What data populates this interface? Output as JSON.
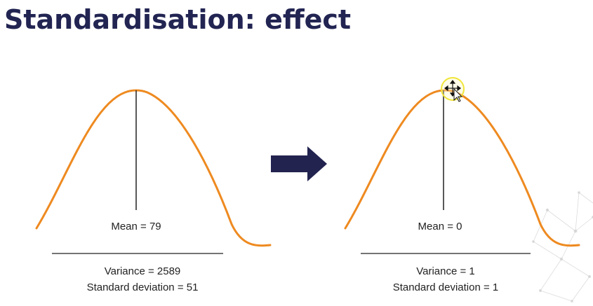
{
  "title": "Standardisation: effect",
  "colors": {
    "title": "#222452",
    "curve": "#ee8a20",
    "arrow": "#22234f",
    "line": "#222222",
    "cursor_highlight": "#f0e63a"
  },
  "left_distribution": {
    "mean_label": "Mean = 79",
    "variance_label": "Variance = 2589",
    "sd_label": "Standard deviation = 51"
  },
  "right_distribution": {
    "mean_label": "Mean = 0",
    "variance_label": "Variance = 1",
    "sd_label": "Standard deviation = 1"
  },
  "icons": {
    "transition": "right-arrow-icon",
    "cursor": "move-cursor-icon"
  }
}
